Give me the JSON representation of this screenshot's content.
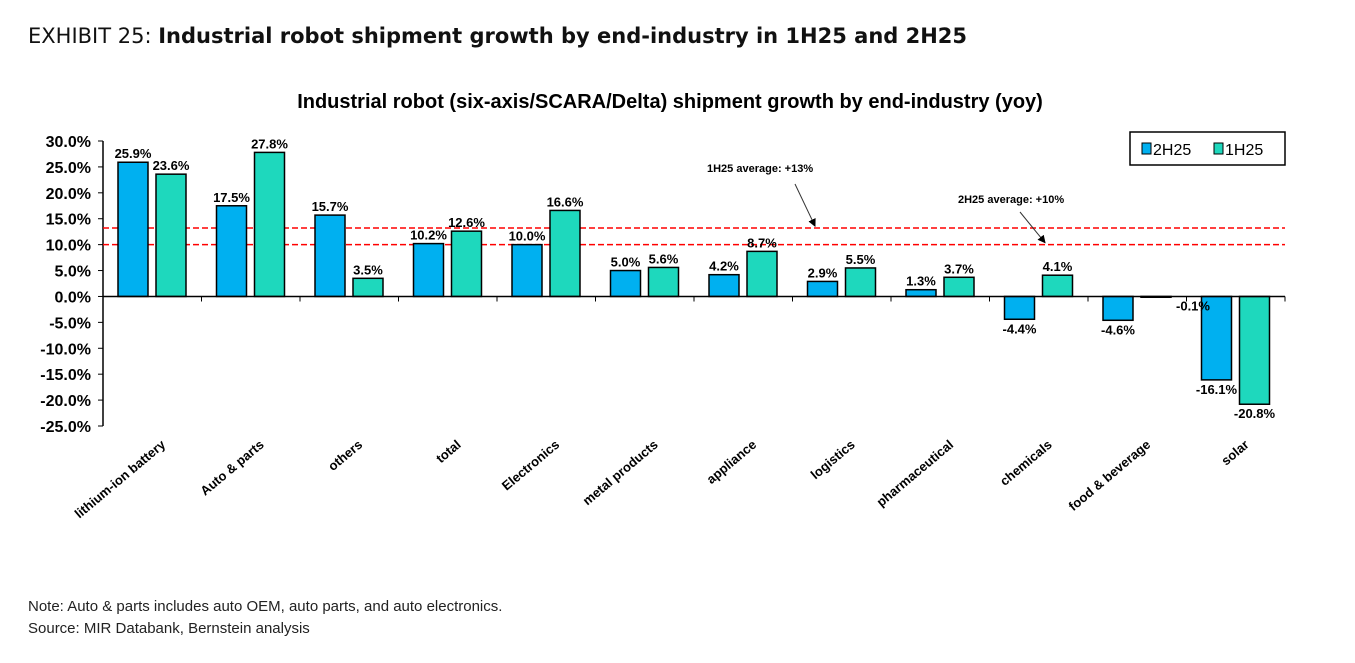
{
  "header": {
    "exhibit_label": "EXHIBIT 25:",
    "exhibit_title": "Industrial robot shipment growth by end-industry in 1H25 and 2H25"
  },
  "notes": {
    "note": "Note: Auto & parts includes auto OEM, auto parts, and auto electronics.",
    "source": "Source: MIR Databank, Bernstein analysis"
  },
  "chart_data": {
    "type": "bar",
    "title": "Industrial robot (six-axis/SCARA/Delta) shipment growth by end-industry (yoy)",
    "xlabel": "",
    "ylabel": "",
    "ylim": [
      -25,
      30
    ],
    "yticks": [
      30,
      25,
      20,
      15,
      10,
      5,
      0,
      -5,
      -10,
      -15,
      -20,
      -25
    ],
    "ytick_labels": [
      "30.0%",
      "25.0%",
      "20.0%",
      "15.0%",
      "10.0%",
      "5.0%",
      "0.0%",
      "-5.0%",
      "-10.0%",
      "-15.0%",
      "-20.0%",
      "-25.0%"
    ],
    "categories": [
      "lithium-ion battery",
      "Auto & parts",
      "others",
      "total",
      "Electronics",
      "metal products",
      "appliance",
      "logistics",
      "pharmaceutical",
      "chemicals",
      "food & beverage",
      "solar"
    ],
    "series": [
      {
        "name": "2H25",
        "color": "#00b0f0",
        "values": [
          25.9,
          17.5,
          15.7,
          10.2,
          10.0,
          5.0,
          4.2,
          2.9,
          1.3,
          -4.4,
          -4.6,
          -16.1
        ],
        "labels": [
          "25.9%",
          "17.5%",
          "15.7%",
          "10.2%",
          "10.0%",
          "5.0%",
          "4.2%",
          "2.9%",
          "1.3%",
          "-4.4%",
          "-4.6%",
          "-16.1%"
        ]
      },
      {
        "name": "1H25",
        "color": "#1ed8bd",
        "values": [
          23.6,
          27.8,
          3.5,
          12.6,
          16.6,
          5.6,
          8.7,
          5.5,
          3.7,
          4.1,
          -0.1,
          -20.8
        ],
        "labels": [
          "23.6%",
          "27.8%",
          "3.5%",
          "12.6%",
          "16.6%",
          "5.6%",
          "8.7%",
          "5.5%",
          "3.7%",
          "4.1%",
          "-0.1%",
          "-20.8%"
        ]
      }
    ],
    "reference_lines": [
      {
        "value": 13.2,
        "label": "1H25 average: +13%",
        "color": "#ff0000"
      },
      {
        "value": 10.0,
        "label": "2H25 average: +10%",
        "color": "#ff0000"
      }
    ],
    "grid": false,
    "legend": "top-right"
  }
}
